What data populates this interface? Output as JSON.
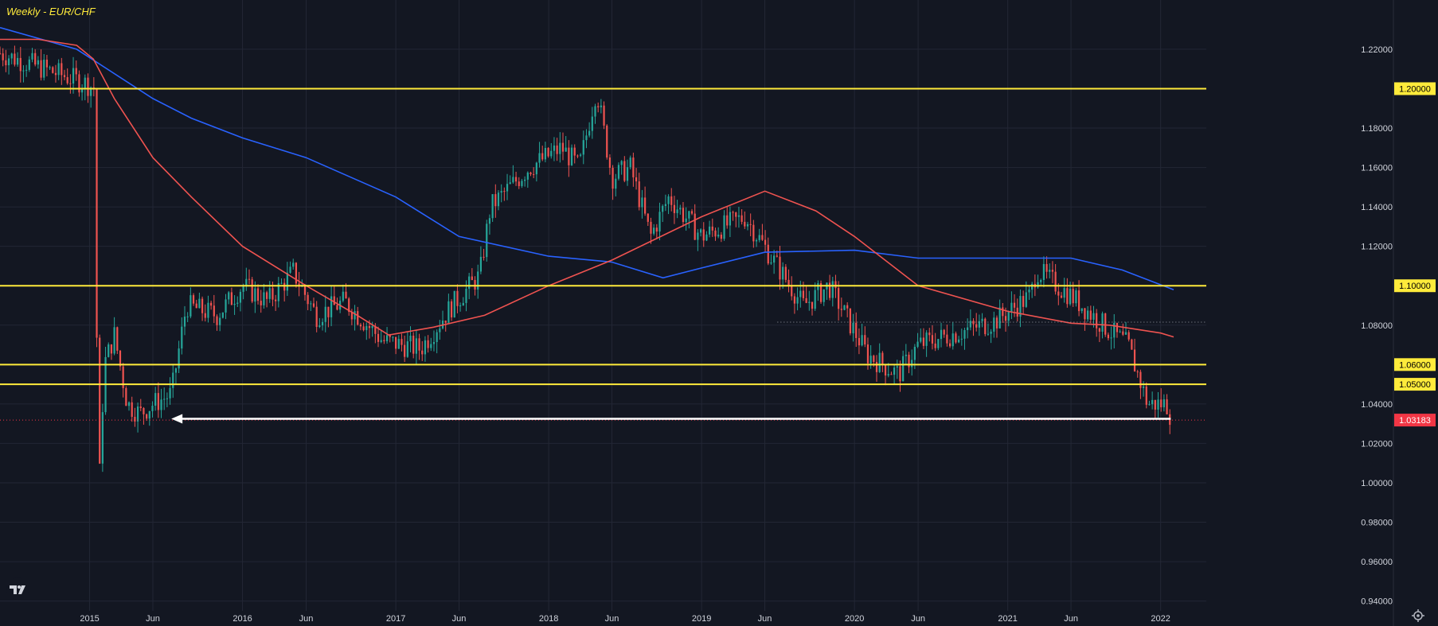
{
  "colors": {
    "background": "#131722",
    "grid": "#232735",
    "text": "#d1d4dc",
    "up": "#26a69a",
    "down": "#ef5350",
    "level_line": "#ffeb3b",
    "ma_fast": "#ef5350",
    "ma_slow": "#2962ff",
    "price_badge": "#f23645",
    "arrow": "#ffffff"
  },
  "icons": {
    "logo": "tradingview-logo-icon",
    "settings": "gear-icon"
  },
  "chart_data": {
    "type": "candlestick",
    "title": "Weekly - EUR/CHF",
    "x_ticks": [
      "2015",
      "Jun",
      "2016",
      "Jun",
      "2017",
      "Jun",
      "2018",
      "Jun",
      "2019",
      "Jun",
      "2020",
      "Jun",
      "2021",
      "Jun",
      "2022"
    ],
    "x_tick_dates": [
      "2015-01-01",
      "2015-06-01",
      "2016-01-01",
      "2016-06-01",
      "2017-01-01",
      "2017-06-01",
      "2018-01-01",
      "2018-06-01",
      "2019-01-01",
      "2019-06-01",
      "2020-01-01",
      "2020-06-01",
      "2021-01-01",
      "2021-06-01",
      "2022-01-01"
    ],
    "y_ticks": [
      "0.94000",
      "0.96000",
      "0.98000",
      "1.00000",
      "1.02000",
      "1.04000",
      "1.08000",
      "1.12000",
      "1.14000",
      "1.16000",
      "1.18000",
      "1.22000"
    ],
    "ylim": [
      0.935,
      1.245
    ],
    "xlim": [
      "2014-06-01",
      "2022-04-20"
    ],
    "horizontal_levels": [
      {
        "value": 1.2,
        "label": "1.20000"
      },
      {
        "value": 1.1,
        "label": "1.10000"
      },
      {
        "value": 1.06,
        "label": "1.06000"
      },
      {
        "value": 1.05,
        "label": "1.05000"
      }
    ],
    "current_price": {
      "value": 1.03183,
      "label": "1.03183"
    },
    "arrow_line": {
      "value": 1.0325,
      "start": "2015-07-15",
      "end": "2022-01-25"
    },
    "dotted_line": {
      "value": 1.0815,
      "start": "2019-07-01",
      "end": "2022-04-20"
    },
    "ma_fast": [
      [
        "2014-06-01",
        1.225
      ],
      [
        "2014-09-01",
        1.225
      ],
      [
        "2014-12-01",
        1.222
      ],
      [
        "2015-01-10",
        1.215
      ],
      [
        "2015-03-01",
        1.195
      ],
      [
        "2015-06-01",
        1.165
      ],
      [
        "2015-09-01",
        1.145
      ],
      [
        "2016-01-01",
        1.12
      ],
      [
        "2016-06-01",
        1.1
      ],
      [
        "2016-10-01",
        1.085
      ],
      [
        "2016-12-15",
        1.075
      ],
      [
        "2017-04-01",
        1.079
      ],
      [
        "2017-08-01",
        1.085
      ],
      [
        "2018-01-01",
        1.1
      ],
      [
        "2018-06-01",
        1.113
      ],
      [
        "2019-01-01",
        1.135
      ],
      [
        "2019-06-01",
        1.148
      ],
      [
        "2019-10-01",
        1.138
      ],
      [
        "2020-01-01",
        1.125
      ],
      [
        "2020-06-01",
        1.1
      ],
      [
        "2021-01-01",
        1.087
      ],
      [
        "2021-06-01",
        1.081
      ],
      [
        "2021-09-01",
        1.08
      ],
      [
        "2022-01-01",
        1.076
      ],
      [
        "2022-02-01",
        1.074
      ]
    ],
    "ma_slow": [
      [
        "2014-06-01",
        1.231
      ],
      [
        "2014-12-01",
        1.22
      ],
      [
        "2015-06-01",
        1.195
      ],
      [
        "2015-09-01",
        1.185
      ],
      [
        "2016-01-01",
        1.175
      ],
      [
        "2016-06-01",
        1.165
      ],
      [
        "2017-01-01",
        1.145
      ],
      [
        "2017-06-01",
        1.125
      ],
      [
        "2018-01-01",
        1.115
      ],
      [
        "2018-06-01",
        1.112
      ],
      [
        "2018-10-01",
        1.104
      ],
      [
        "2019-01-01",
        1.109
      ],
      [
        "2019-06-01",
        1.117
      ],
      [
        "2020-01-01",
        1.118
      ],
      [
        "2020-06-01",
        1.114
      ],
      [
        "2021-01-01",
        1.114
      ],
      [
        "2021-06-01",
        1.114
      ],
      [
        "2021-10-01",
        1.108
      ],
      [
        "2022-02-01",
        1.098
      ]
    ],
    "price_path": [
      [
        "2014-06-01",
        1.218
      ],
      [
        "2014-12-31",
        1.202
      ],
      [
        "2015-01-12",
        1.2
      ],
      [
        "2015-01-22",
        0.99
      ],
      [
        "2015-02-05",
        1.06
      ],
      [
        "2015-03-01",
        1.075
      ],
      [
        "2015-04-01",
        1.04
      ],
      [
        "2015-05-01",
        1.035
      ],
      [
        "2015-06-01",
        1.04
      ],
      [
        "2015-07-15",
        1.045
      ],
      [
        "2015-08-20",
        1.09
      ],
      [
        "2015-11-01",
        1.085
      ],
      [
        "2016-01-01",
        1.1
      ],
      [
        "2016-03-01",
        1.092
      ],
      [
        "2016-05-01",
        1.107
      ],
      [
        "2016-06-25",
        1.085
      ],
      [
        "2016-09-01",
        1.092
      ],
      [
        "2016-12-01",
        1.072
      ],
      [
        "2017-03-01",
        1.068
      ],
      [
        "2017-05-15",
        1.09
      ],
      [
        "2017-07-20",
        1.105
      ],
      [
        "2017-08-15",
        1.14
      ],
      [
        "2017-11-15",
        1.16
      ],
      [
        "2018-02-01",
        1.17
      ],
      [
        "2018-03-15",
        1.16
      ],
      [
        "2018-04-25",
        1.2
      ],
      [
        "2018-06-01",
        1.155
      ],
      [
        "2018-07-15",
        1.16
      ],
      [
        "2018-09-01",
        1.125
      ],
      [
        "2018-10-15",
        1.145
      ],
      [
        "2019-01-01",
        1.125
      ],
      [
        "2019-04-15",
        1.135
      ],
      [
        "2019-06-15",
        1.115
      ],
      [
        "2019-09-01",
        1.09
      ],
      [
        "2019-11-01",
        1.1
      ],
      [
        "2020-02-01",
        1.065
      ],
      [
        "2020-04-15",
        1.055
      ],
      [
        "2020-06-01",
        1.07
      ],
      [
        "2020-08-15",
        1.075
      ],
      [
        "2020-12-01",
        1.082
      ],
      [
        "2021-02-25",
        1.095
      ],
      [
        "2021-03-10",
        1.108
      ],
      [
        "2021-06-01",
        1.095
      ],
      [
        "2021-09-01",
        1.077
      ],
      [
        "2021-10-15",
        1.07
      ],
      [
        "2021-12-01",
        1.04
      ],
      [
        "2022-01-15",
        1.04
      ],
      [
        "2022-01-28",
        1.032
      ]
    ]
  }
}
